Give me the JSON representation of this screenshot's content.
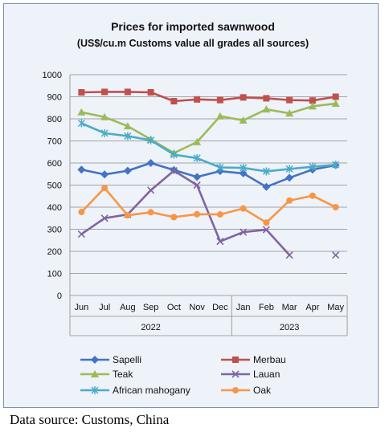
{
  "chart_data": {
    "type": "line",
    "title": "Prices for imported sawnwood",
    "subtitle": "(US$/cu.m Customs value all grades all sources)",
    "categories": [
      "Jun",
      "Jul",
      "Aug",
      "Sep",
      "Oct",
      "Nov",
      "Dec",
      "Jan",
      "Feb",
      "Mar",
      "Apr",
      "May"
    ],
    "category_groups": [
      {
        "label": "2022",
        "count": 7
      },
      {
        "label": "2023",
        "count": 5
      }
    ],
    "ylim": [
      0,
      1000
    ],
    "yticks": [
      "0",
      "100",
      "200",
      "300",
      "400",
      "500",
      "600",
      "700",
      "800",
      "900",
      "1000"
    ],
    "grid": true,
    "legend_position": "bottom",
    "series": [
      {
        "name": "Sapelli",
        "color": "#4472c4",
        "marker": "diamond",
        "values": [
          570,
          548,
          565,
          600,
          568,
          537,
          563,
          553,
          492,
          533,
          570,
          590
        ]
      },
      {
        "name": "Merbau",
        "color": "#c0504d",
        "marker": "square",
        "values": [
          920,
          922,
          922,
          920,
          880,
          888,
          885,
          897,
          893,
          885,
          883,
          900
        ]
      },
      {
        "name": "Teak",
        "color": "#9bbb59",
        "marker": "triangle",
        "values": [
          830,
          808,
          767,
          707,
          645,
          695,
          812,
          793,
          843,
          825,
          857,
          869
        ]
      },
      {
        "name": "Lauan",
        "color": "#8064a2",
        "marker": "x",
        "values": [
          278,
          350,
          367,
          477,
          565,
          500,
          245,
          287,
          298,
          183,
          null,
          183
        ]
      },
      {
        "name": "African mahogany",
        "color": "#4bacc6",
        "marker": "star",
        "values": [
          780,
          735,
          722,
          703,
          638,
          622,
          580,
          578,
          562,
          573,
          583,
          592
        ]
      },
      {
        "name": "Oak",
        "color": "#f79646",
        "marker": "circle",
        "values": [
          378,
          487,
          363,
          377,
          355,
          368,
          367,
          394,
          330,
          430,
          452,
          400
        ]
      }
    ]
  },
  "source_note": "Data source: Customs, China"
}
